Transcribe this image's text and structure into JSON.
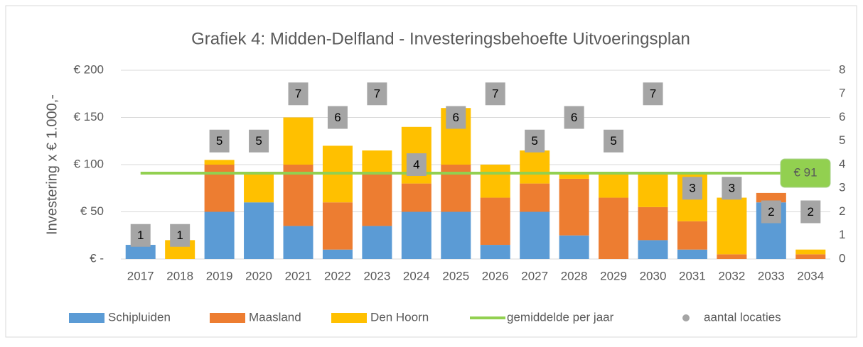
{
  "chart_data": {
    "type": "bar",
    "stacked": true,
    "title": "Grafiek 4: Midden-Delfland - Investeringsbehoefte Uitvoeringsplan",
    "ylabel": "Investering x € 1.000,-",
    "categories": [
      "2017",
      "2018",
      "2019",
      "2020",
      "2021",
      "2022",
      "2023",
      "2024",
      "2025",
      "2026",
      "2027",
      "2028",
      "2029",
      "2030",
      "2031",
      "2032",
      "2033",
      "2034"
    ],
    "series": [
      {
        "name": "Schipluiden",
        "color": "#5b9bd5",
        "values": [
          15,
          0,
          50,
          60,
          35,
          10,
          35,
          50,
          50,
          15,
          50,
          25,
          0,
          20,
          10,
          0,
          60,
          0
        ]
      },
      {
        "name": "Maasland",
        "color": "#ed7d31",
        "values": [
          0,
          0,
          50,
          0,
          65,
          50,
          55,
          30,
          50,
          50,
          30,
          60,
          65,
          35,
          30,
          5,
          10,
          5
        ]
      },
      {
        "name": "Den Hoorn",
        "color": "#ffc000",
        "values": [
          0,
          20,
          5,
          30,
          50,
          60,
          25,
          60,
          60,
          35,
          35,
          5,
          25,
          35,
          50,
          60,
          0,
          5
        ]
      }
    ],
    "average": {
      "name": "gemiddelde per jaar",
      "color": "#92d050",
      "value": 91,
      "value_label": "€ 91"
    },
    "counts": {
      "name": "aantal locaties",
      "color": "#a5a5a5",
      "axis": "y2",
      "values": [
        1,
        1,
        5,
        5,
        7,
        6,
        7,
        4,
        6,
        7,
        5,
        6,
        5,
        7,
        3,
        3,
        2,
        2
      ]
    },
    "ylim": [
      0,
      200
    ],
    "yticks": [
      {
        "value": 0,
        "label": "€ -"
      },
      {
        "value": 50,
        "label": "€ 50"
      },
      {
        "value": 100,
        "label": "€ 100"
      },
      {
        "value": 150,
        "label": "€ 150"
      },
      {
        "value": 200,
        "label": "€ 200"
      }
    ],
    "y2lim": [
      0,
      8
    ],
    "y2ticks": [
      0,
      1,
      2,
      3,
      4,
      5,
      6,
      7,
      8
    ],
    "grid": true,
    "legend": "bottom"
  }
}
